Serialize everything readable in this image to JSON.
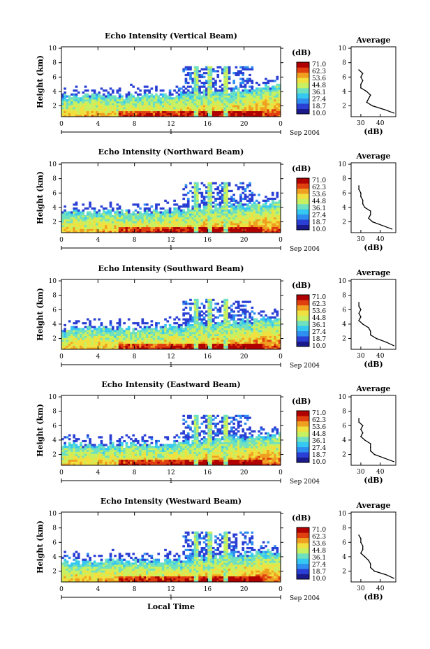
{
  "chart_data": [
    {
      "type": "heatmap",
      "title": "Echo Intensity (Vertical Beam)",
      "ylabel": "Height (km)",
      "x_ticks": [
        "0",
        "4",
        "8",
        "12",
        "16",
        "20",
        "0"
      ],
      "y_ticks": [
        "2",
        "4",
        "6",
        "8",
        "10"
      ],
      "xlim": [
        0,
        24
      ],
      "ylim": [
        0.5,
        10.2
      ],
      "date_marker": "1",
      "date_label": "Sep 2004",
      "colorbar": {
        "unit": "(dB)",
        "levels": [
          "71.0",
          "62.3",
          "53.6",
          "44.8",
          "36.1",
          "27.4",
          "18.7",
          "10.0"
        ]
      },
      "profile": {
        "title": "Average",
        "xlabel": "(dB)",
        "x_ticks": [
          "30",
          "40"
        ],
        "y_ticks": [
          "2",
          "4",
          "6",
          "8",
          "10"
        ],
        "height_km": [
          1.0,
          1.5,
          2.0,
          2.5,
          3.0,
          3.5,
          4.0,
          4.5,
          5.0,
          5.5,
          6.0,
          6.5,
          7.0
        ],
        "db": [
          47,
          42,
          36,
          33,
          34,
          35,
          33,
          30,
          30,
          31,
          30,
          31,
          29
        ]
      }
    },
    {
      "type": "heatmap",
      "title": "Echo Intensity (Northward Beam)",
      "ylabel": "Height (km)",
      "x_ticks": [
        "0",
        "4",
        "8",
        "12",
        "16",
        "20",
        "0"
      ],
      "y_ticks": [
        "2",
        "4",
        "6",
        "8",
        "10"
      ],
      "xlim": [
        0,
        24
      ],
      "ylim": [
        0.5,
        10.2
      ],
      "date_marker": "1",
      "date_label": "Sep 2004",
      "colorbar": {
        "unit": "(dB)",
        "levels": [
          "71.0",
          "62.3",
          "53.6",
          "44.8",
          "36.1",
          "27.4",
          "18.7",
          "10.0"
        ]
      },
      "profile": {
        "title": "Average",
        "xlabel": "(dB)",
        "x_ticks": [
          "30",
          "40"
        ],
        "y_ticks": [
          "2",
          "4",
          "6",
          "8",
          "10"
        ],
        "height_km": [
          1.0,
          1.5,
          2.0,
          2.5,
          3.0,
          3.5,
          4.0,
          4.5,
          5.0,
          5.5,
          6.0,
          6.5,
          7.0
        ],
        "db": [
          46,
          41,
          36,
          34,
          35,
          35,
          32,
          31,
          31,
          30,
          30,
          29,
          29
        ]
      }
    },
    {
      "type": "heatmap",
      "title": "Echo Intensity (Southward Beam)",
      "ylabel": "Height (km)",
      "x_ticks": [
        "0",
        "4",
        "8",
        "12",
        "16",
        "20",
        "0"
      ],
      "y_ticks": [
        "2",
        "4",
        "6",
        "8",
        "10"
      ],
      "xlim": [
        0,
        24
      ],
      "ylim": [
        0.5,
        10.2
      ],
      "date_marker": "1",
      "date_label": "Sep 2004",
      "colorbar": {
        "unit": "(dB)",
        "levels": [
          "71.0",
          "62.3",
          "53.6",
          "44.8",
          "36.1",
          "27.4",
          "18.7",
          "10.0"
        ]
      },
      "profile": {
        "title": "Average",
        "xlabel": "(dB)",
        "x_ticks": [
          "30",
          "40"
        ],
        "y_ticks": [
          "2",
          "4",
          "6",
          "8",
          "10"
        ],
        "height_km": [
          1.0,
          1.5,
          2.0,
          2.5,
          3.0,
          3.5,
          4.0,
          4.5,
          5.0,
          5.5,
          6.0,
          6.5,
          7.0
        ],
        "db": [
          47,
          43,
          38,
          35,
          35,
          34,
          31,
          29,
          30,
          29,
          30,
          29,
          29
        ]
      }
    },
    {
      "type": "heatmap",
      "title": "Echo Intensity (Eastward Beam)",
      "ylabel": "Height (km)",
      "x_ticks": [
        "0",
        "4",
        "8",
        "12",
        "16",
        "20",
        "0"
      ],
      "y_ticks": [
        "2",
        "4",
        "6",
        "8",
        "10"
      ],
      "xlim": [
        0,
        24
      ],
      "ylim": [
        0.5,
        10.2
      ],
      "date_marker": "1",
      "date_label": "Sep 2004",
      "colorbar": {
        "unit": "(dB)",
        "levels": [
          "71.0",
          "62.3",
          "53.6",
          "44.8",
          "36.1",
          "27.4",
          "18.7",
          "10.0"
        ]
      },
      "profile": {
        "title": "Average",
        "xlabel": "(dB)",
        "x_ticks": [
          "30",
          "40"
        ],
        "y_ticks": [
          "2",
          "4",
          "6",
          "8",
          "10"
        ],
        "height_km": [
          1.0,
          1.5,
          2.0,
          2.5,
          3.0,
          3.5,
          4.0,
          4.5,
          5.0,
          5.5,
          6.0,
          6.5,
          7.0
        ],
        "db": [
          47,
          42,
          37,
          35,
          35,
          35,
          32,
          30,
          31,
          30,
          31,
          29,
          29
        ]
      }
    },
    {
      "type": "heatmap",
      "title": "Echo Intensity (Westward Beam)",
      "ylabel": "Height (km)",
      "x_ticks": [
        "0",
        "4",
        "8",
        "12",
        "16",
        "20",
        "0"
      ],
      "y_ticks": [
        "2",
        "4",
        "6",
        "8",
        "10"
      ],
      "xlim": [
        0,
        24
      ],
      "ylim": [
        0.5,
        10.2
      ],
      "date_marker": "1",
      "date_label": "Sep 2004",
      "xlabel": "Local Time",
      "colorbar": {
        "unit": "(dB)",
        "levels": [
          "71.0",
          "62.3",
          "53.6",
          "44.8",
          "36.1",
          "27.4",
          "18.7",
          "10.0"
        ]
      },
      "profile": {
        "title": "Average",
        "xlabel": "(dB)",
        "x_ticks": [
          "30",
          "40"
        ],
        "y_ticks": [
          "2",
          "4",
          "6",
          "8",
          "10"
        ],
        "height_km": [
          1.0,
          1.5,
          2.0,
          2.5,
          3.0,
          3.5,
          4.0,
          4.5,
          5.0,
          5.5,
          6.0,
          6.5,
          7.0
        ],
        "db": [
          47,
          43,
          37,
          35,
          35,
          34,
          32,
          30,
          31,
          31,
          30,
          30,
          29
        ]
      }
    }
  ],
  "colorscale": [
    "#1a1a8c",
    "#2a3fd4",
    "#2f8ff0",
    "#35c8f0",
    "#6fe0c0",
    "#c8f060",
    "#f0e040",
    "#f0a020",
    "#e04010",
    "#b00000"
  ]
}
